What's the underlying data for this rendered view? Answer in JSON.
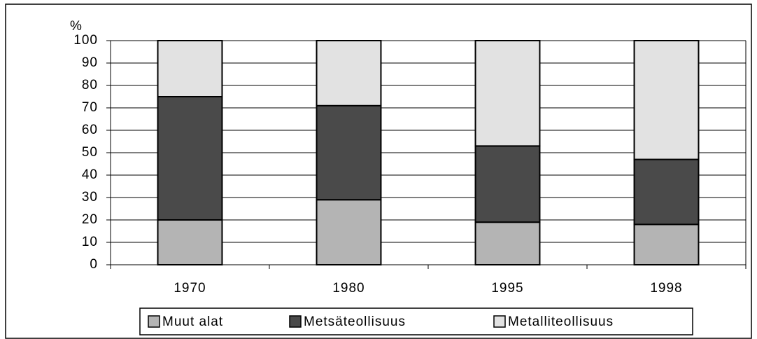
{
  "chart_data": {
    "type": "stacked-bar",
    "ylabel": "%",
    "categories": [
      "1970",
      "1980",
      "1995",
      "1998"
    ],
    "series": [
      {
        "name": "Muut alat",
        "color": "#b4b4b4",
        "values": [
          20,
          29,
          19,
          18
        ]
      },
      {
        "name": "Metsäteollisuus",
        "color": "#4a4a4a",
        "values": [
          55,
          42,
          34,
          29
        ]
      },
      {
        "name": "Metalliteollisuus",
        "color": "#e2e2e2",
        "values": [
          25,
          29,
          47,
          53
        ]
      }
    ],
    "ylim": [
      0,
      100
    ],
    "yticks": [
      0,
      10,
      20,
      30,
      40,
      50,
      60,
      70,
      80,
      90,
      100
    ],
    "grid": true
  }
}
